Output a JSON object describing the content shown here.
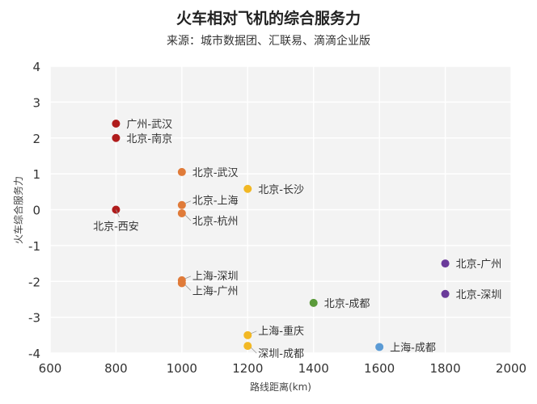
{
  "chart_data": {
    "type": "scatter",
    "title": "火车相对飞机的综合服务力",
    "subtitle": "来源：城市数据团、汇联易、滴滴企业版",
    "xlabel": "路线距离(km)",
    "ylabel": "火车综合服务力",
    "xlim": [
      600,
      2000
    ],
    "ylim": [
      -4,
      4
    ],
    "xticks": [
      "600",
      "800",
      "1000",
      "1200",
      "1400",
      "1600",
      "1800",
      "2000"
    ],
    "yticks": [
      "4",
      "3",
      "2",
      "1",
      "0",
      "-1",
      "-2",
      "-3",
      "-4"
    ],
    "grid": true,
    "points": [
      {
        "label": "广州-武汉",
        "x": 800,
        "y": 2.4,
        "color": "#b01c1c",
        "label_pos": "right"
      },
      {
        "label": "北京-南京",
        "x": 800,
        "y": 2.0,
        "color": "#b01c1c",
        "label_pos": "right"
      },
      {
        "label": "北京-西安",
        "x": 800,
        "y": 0.0,
        "color": "#b01c1c",
        "label_pos": "below"
      },
      {
        "label": "北京-武汉",
        "x": 1000,
        "y": 1.05,
        "color": "#e07b39",
        "label_pos": "right"
      },
      {
        "label": "北京-上海",
        "x": 1000,
        "y": 0.13,
        "color": "#e07b39",
        "label_pos": "right-up"
      },
      {
        "label": "北京-杭州",
        "x": 1000,
        "y": -0.1,
        "color": "#e07b39",
        "label_pos": "right-down"
      },
      {
        "label": "北京-长沙",
        "x": 1200,
        "y": 0.58,
        "color": "#f2b824",
        "label_pos": "right"
      },
      {
        "label": "上海-深圳",
        "x": 1000,
        "y": -1.97,
        "color": "#e07b39",
        "label_pos": "right-up"
      },
      {
        "label": "上海-广州",
        "x": 1000,
        "y": -2.05,
        "color": "#e07b39",
        "label_pos": "right-down"
      },
      {
        "label": "北京-成都",
        "x": 1400,
        "y": -2.6,
        "color": "#5a9a3a",
        "label_pos": "right"
      },
      {
        "label": "上海-重庆",
        "x": 1200,
        "y": -3.5,
        "color": "#f2b824",
        "label_pos": "right-up"
      },
      {
        "label": "深圳-成都",
        "x": 1200,
        "y": -3.8,
        "color": "#f2b824",
        "label_pos": "right-down"
      },
      {
        "label": "上海-成都",
        "x": 1600,
        "y": -3.83,
        "color": "#5b9bd5",
        "label_pos": "right"
      },
      {
        "label": "北京-广州",
        "x": 1800,
        "y": -1.5,
        "color": "#6a3a9a",
        "label_pos": "right"
      },
      {
        "label": "北京-深圳",
        "x": 1800,
        "y": -2.35,
        "color": "#6a3a9a",
        "label_pos": "right"
      }
    ]
  }
}
